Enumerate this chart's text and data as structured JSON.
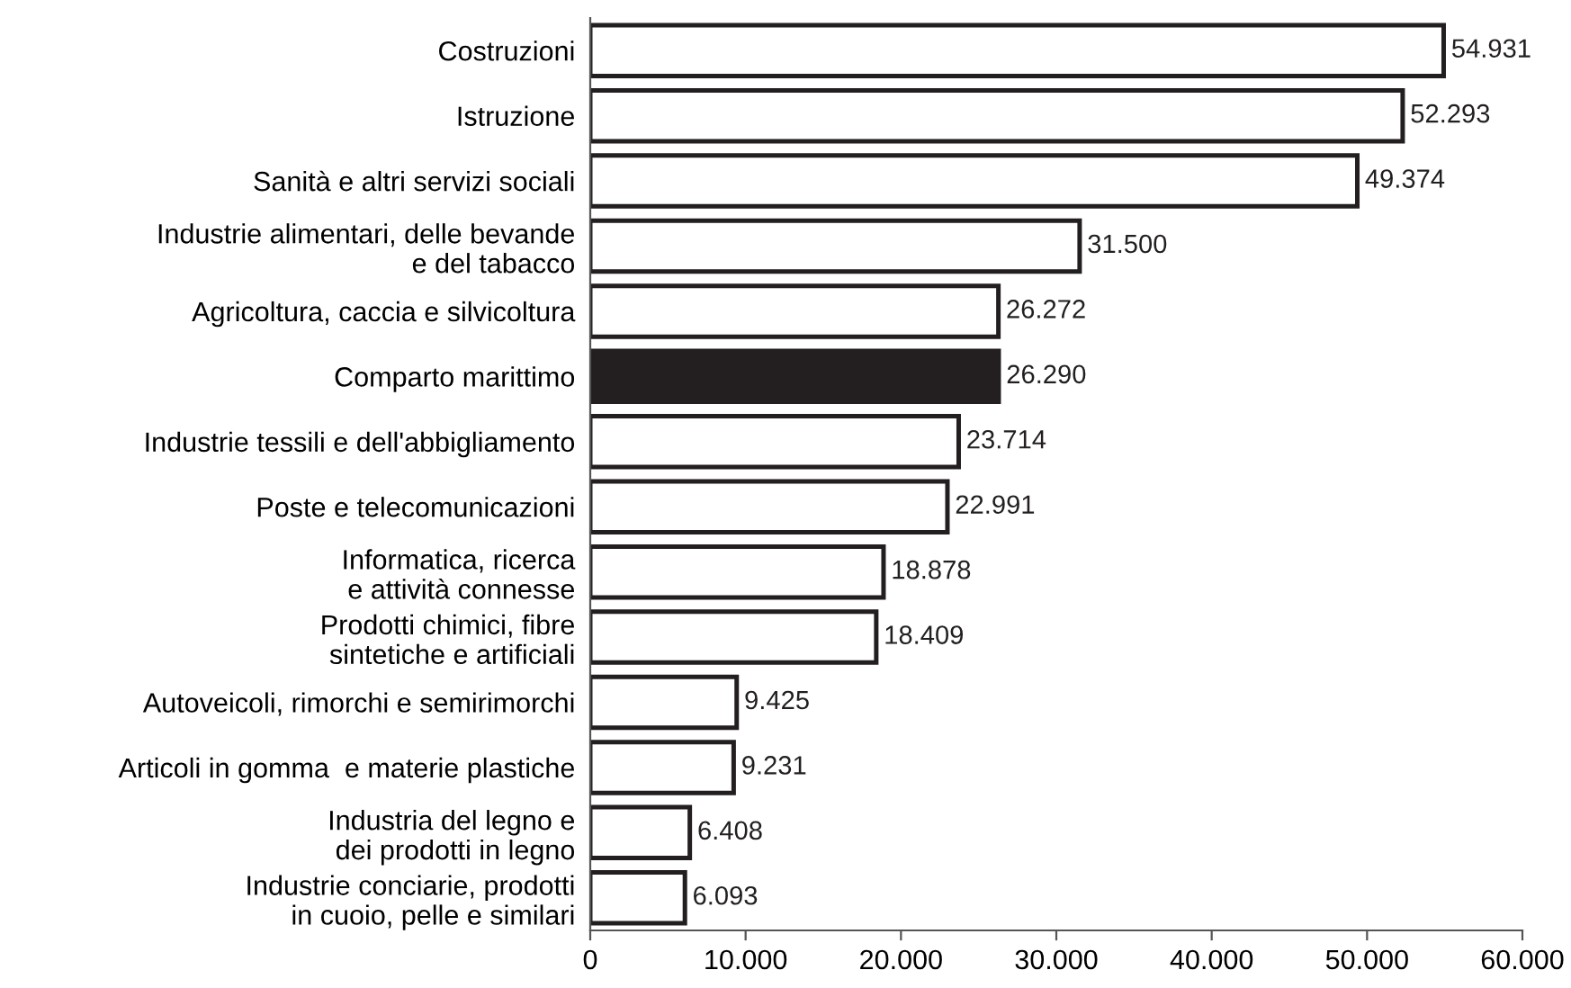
{
  "chart_data": {
    "type": "bar",
    "orientation": "horizontal",
    "categories": [
      "Costruzioni",
      "Istruzione",
      "Sanità e altri servizi sociali",
      "Industrie alimentari, delle bevande\ne del tabacco",
      "Agricoltura, caccia e silvicoltura",
      "Comparto marittimo",
      "Industrie tessili e dell'abbigliamento",
      "Poste e telecomunicazioni",
      "Informatica, ricerca\ne attività connesse",
      "Prodotti chimici, fibre\nsintetiche e artificiali",
      "Autoveicoli, rimorchi e semirimorchi",
      "Articoli in gomma  e materie plastiche",
      "Industria del legno e\ndei prodotti in legno",
      "Industrie conciarie, prodotti\nin cuoio, pelle e similari"
    ],
    "values": [
      54931,
      52293,
      49374,
      31500,
      26272,
      26290,
      23714,
      22991,
      18878,
      18409,
      9425,
      9231,
      6408,
      6093
    ],
    "value_labels": [
      "54.931",
      "52.293",
      "49.374",
      "31.500",
      "26.272",
      "26.290",
      "23.714",
      "22.991",
      "18.878",
      "18.409",
      "9.425",
      "9.231",
      "6.408",
      "6.093"
    ],
    "colors": [
      "#ffffff",
      "#ffffff",
      "#ffffff",
      "#ffffff",
      "#ffffff",
      "#231f20",
      "#ffffff",
      "#ffffff",
      "#ffffff",
      "#ffffff",
      "#ffffff",
      "#ffffff",
      "#ffffff",
      "#ffffff"
    ],
    "xlim": [
      0,
      60000
    ],
    "xticks": [
      0,
      {
        "value": 10000,
        "label": "10.000"
      },
      {
        "value": 20000,
        "label": "20.000"
      },
      {
        "value": 30000,
        "label": "30.000"
      },
      {
        "value": 40000,
        "label": "40.000"
      },
      {
        "value": 50000,
        "label": "50.000"
      },
      {
        "value": 60000,
        "label": "60.000"
      }
    ],
    "grid": false,
    "legend": false
  }
}
